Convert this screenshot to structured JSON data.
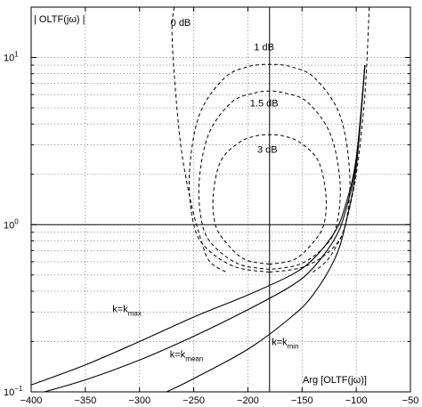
{
  "chart_data": {
    "type": "line",
    "title": "",
    "ylabel": "| OLTF(jω) |",
    "xlabel": "Arg [OLTF(jω)]",
    "xlim": [
      -400,
      -50
    ],
    "ylim": [
      0.1,
      20
    ],
    "yscale": "log",
    "grid": true,
    "xticks": [
      -400,
      -350,
      -300,
      -250,
      -200,
      -150,
      -100,
      -50
    ],
    "xtick_labels": [
      "−400",
      "−350",
      "−300",
      "−250",
      "−200",
      "−150",
      "−100",
      "−50"
    ],
    "yticks": [
      0.1,
      1,
      10
    ],
    "ytick_labels": [
      {
        "base": "10",
        "exp": "−1"
      },
      {
        "base": "10",
        "exp": "0"
      },
      {
        "base": "10",
        "exp": "1"
      }
    ],
    "reference_lines": {
      "x": -180,
      "y": 1
    },
    "contours": [
      {
        "label": "0 dB",
        "label_at": [
          -262,
          15.5
        ],
        "points": [
          [
            -268,
            20
          ],
          [
            -270,
            15
          ],
          [
            -268,
            8
          ],
          [
            -262,
            3
          ],
          [
            -253,
            1.4
          ],
          [
            -243,
            0.8
          ],
          [
            -235,
            0.6
          ],
          [
            -220,
            0.52
          ]
        ]
      },
      {
        "label": "0 dB",
        "label_at": null,
        "points": [
          [
            -140,
            0.52
          ],
          [
            -128,
            0.6
          ],
          [
            -118,
            0.75
          ],
          [
            -110,
            1.0
          ],
          [
            -100,
            2.0
          ],
          [
            -93,
            5.0
          ],
          [
            -90,
            10
          ],
          [
            -88,
            20
          ]
        ]
      },
      {
        "label": "1 dB",
        "label_at": [
          -185,
          11
        ],
        "points": [
          [
            -180,
            0.52
          ],
          [
            -212,
            0.56
          ],
          [
            -238,
            0.72
          ],
          [
            -250,
            1.0
          ],
          [
            -254,
            2.0
          ],
          [
            -245,
            4.5
          ],
          [
            -222,
            7.5
          ],
          [
            -200,
            8.8
          ],
          [
            -180,
            9.1
          ],
          [
            -160,
            8.8
          ],
          [
            -138,
            7.5
          ],
          [
            -115,
            4.5
          ],
          [
            -106,
            2.0
          ],
          [
            -110,
            1.0
          ],
          [
            -122,
            0.72
          ],
          [
            -148,
            0.56
          ],
          [
            -180,
            0.52
          ]
        ]
      },
      {
        "label": "1.5 dB",
        "label_at": [
          -185,
          5.1
        ],
        "points": [
          [
            -180,
            0.54
          ],
          [
            -208,
            0.58
          ],
          [
            -231,
            0.74
          ],
          [
            -242,
            1.0
          ],
          [
            -245,
            1.8
          ],
          [
            -236,
            3.5
          ],
          [
            -215,
            5.4
          ],
          [
            -195,
            6.1
          ],
          [
            -180,
            6.3
          ],
          [
            -165,
            6.1
          ],
          [
            -145,
            5.4
          ],
          [
            -124,
            3.5
          ],
          [
            -115,
            1.8
          ],
          [
            -118,
            1.0
          ],
          [
            -129,
            0.74
          ],
          [
            -152,
            0.58
          ],
          [
            -180,
            0.54
          ]
        ]
      },
      {
        "label": "3 dB",
        "label_at": [
          -182,
          2.7
        ],
        "points": [
          [
            -180,
            0.58
          ],
          [
            -203,
            0.62
          ],
          [
            -220,
            0.78
          ],
          [
            -230,
            1.0
          ],
          [
            -232,
            1.5
          ],
          [
            -225,
            2.4
          ],
          [
            -208,
            3.1
          ],
          [
            -192,
            3.4
          ],
          [
            -180,
            3.45
          ],
          [
            -168,
            3.4
          ],
          [
            -152,
            3.1
          ],
          [
            -135,
            2.4
          ],
          [
            -128,
            1.5
          ],
          [
            -130,
            1.0
          ],
          [
            -140,
            0.78
          ],
          [
            -157,
            0.62
          ],
          [
            -180,
            0.58
          ]
        ]
      }
    ],
    "series": [
      {
        "name": "k=k_max",
        "label": {
          "base": "k=k",
          "sub": "max"
        },
        "label_at": [
          -325,
          0.3
        ],
        "points": [
          [
            -400,
            0.11
          ],
          [
            -350,
            0.145
          ],
          [
            -300,
            0.2
          ],
          [
            -250,
            0.28
          ],
          [
            -200,
            0.38
          ],
          [
            -160,
            0.5
          ],
          [
            -140,
            0.62
          ],
          [
            -120,
            0.9
          ],
          [
            -110,
            1.3
          ],
          [
            -100,
            2.5
          ],
          [
            -92,
            9.0
          ]
        ]
      },
      {
        "name": "k=k_mean",
        "label": {
          "base": "k=k",
          "sub": "mean"
        },
        "label_at": [
          -272,
          0.16
        ],
        "points": [
          [
            -400,
            0.095
          ],
          [
            -350,
            0.118
          ],
          [
            -300,
            0.155
          ],
          [
            -250,
            0.215
          ],
          [
            -200,
            0.31
          ],
          [
            -160,
            0.43
          ],
          [
            -140,
            0.55
          ],
          [
            -120,
            0.82
          ],
          [
            -110,
            1.2
          ],
          [
            -100,
            2.4
          ],
          [
            -92,
            9.0
          ]
        ]
      },
      {
        "name": "k=k_min",
        "label": {
          "base": "k=k",
          "sub": "min"
        },
        "label_at": [
          -178,
          0.19
        ],
        "points": [
          [
            -275,
            0.1
          ],
          [
            -250,
            0.12
          ],
          [
            -200,
            0.18
          ],
          [
            -160,
            0.28
          ],
          [
            -140,
            0.38
          ],
          [
            -120,
            0.62
          ],
          [
            -110,
            1.0
          ],
          [
            -100,
            2.2
          ],
          [
            -92,
            9.0
          ]
        ]
      }
    ]
  }
}
